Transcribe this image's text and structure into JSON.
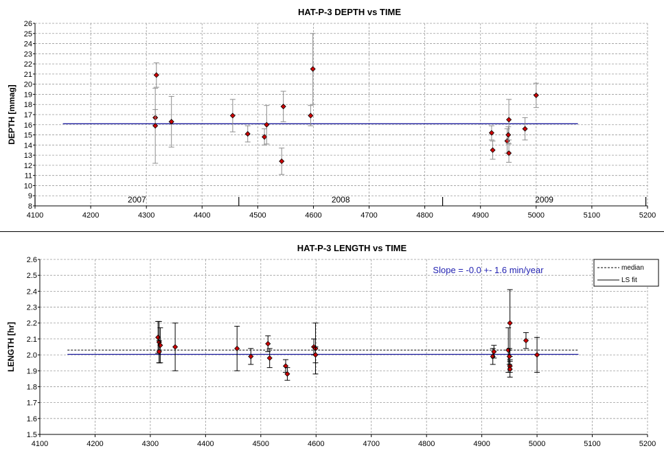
{
  "chart_data": [
    {
      "type": "scatter",
      "title": "HAT-P-3 DEPTH vs TIME",
      "xlabel": "",
      "ylabel": "DEPTH [mmag]",
      "xlim": [
        4100,
        5200
      ],
      "ylim": [
        8,
        26
      ],
      "xticks": [
        4100,
        4200,
        4300,
        4400,
        4500,
        4600,
        4700,
        4800,
        4900,
        5000,
        5100,
        5200
      ],
      "yticks": [
        8,
        9,
        10,
        11,
        12,
        13,
        14,
        15,
        16,
        17,
        18,
        19,
        20,
        21,
        22,
        23,
        24,
        25,
        26
      ],
      "grid": true,
      "year_bands": [
        {
          "label": "2007",
          "start": 4100,
          "end": 4466
        },
        {
          "label": "2008",
          "start": 4466,
          "end": 4832
        },
        {
          "label": "2009",
          "start": 4832,
          "end": 5197
        }
      ],
      "fit_line": {
        "y": 16.1,
        "x_start": 4150,
        "x_end": 5075,
        "color": "#1f1f9f"
      },
      "points": [
        {
          "x": 4316,
          "y": 16.7,
          "err": 0.8
        },
        {
          "x": 4316,
          "y": 15.9,
          "err": 3.7
        },
        {
          "x": 4318,
          "y": 20.9,
          "err": 1.2
        },
        {
          "x": 4345,
          "y": 16.3,
          "err": 2.5
        },
        {
          "x": 4455,
          "y": 16.9,
          "err": 1.6
        },
        {
          "x": 4482,
          "y": 15.1,
          "err": 0.8
        },
        {
          "x": 4512,
          "y": 14.8,
          "err": 0.8
        },
        {
          "x": 4516,
          "y": 16.0,
          "err": 1.9
        },
        {
          "x": 4543,
          "y": 12.4,
          "err": 1.3
        },
        {
          "x": 4546,
          "y": 17.8,
          "err": 1.5
        },
        {
          "x": 4595,
          "y": 16.9,
          "err": 1.0
        },
        {
          "x": 4599,
          "y": 21.5,
          "err": 3.5
        },
        {
          "x": 4920,
          "y": 15.2,
          "err": 0.7
        },
        {
          "x": 4922,
          "y": 13.5,
          "err": 0.9
        },
        {
          "x": 4948,
          "y": 14.4,
          "err": 1.2
        },
        {
          "x": 4951,
          "y": 16.5,
          "err": 2.0
        },
        {
          "x": 4950,
          "y": 15.0,
          "err": 0.8
        },
        {
          "x": 4951,
          "y": 13.2,
          "err": 0.9
        },
        {
          "x": 4980,
          "y": 15.6,
          "err": 1.1
        },
        {
          "x": 5000,
          "y": 18.9,
          "err": 1.2
        }
      ],
      "marker_color": "#cc0000",
      "errorbar_color": "#8c8c8c"
    },
    {
      "type": "scatter",
      "title": "HAT-P-3 LENGTH vs TIME",
      "xlabel": "",
      "ylabel": "LENGTH [hr]",
      "xlim": [
        4100,
        5200
      ],
      "ylim": [
        1.5,
        2.6
      ],
      "xticks": [
        4100,
        4200,
        4300,
        4400,
        4500,
        4600,
        4700,
        4800,
        4900,
        5000,
        5100,
        5200
      ],
      "yticks": [
        "1.5",
        "1.6",
        "1.7",
        "1.8",
        "1.9",
        "2.0",
        "2.1",
        "2.2",
        "2.3",
        "2.4",
        "2.5",
        "2.6"
      ],
      "grid": true,
      "annotation": "Slope = -0.0 +- 1.6 min/year",
      "legend": {
        "position": "top-right",
        "entries": [
          "median",
          "LS fit"
        ]
      },
      "median_line": {
        "y": 2.03,
        "x_start": 4150,
        "x_end": 5075
      },
      "fit_line": {
        "y": 2.003,
        "x_start": 4150,
        "x_end": 5075,
        "color": "#1f1f9f"
      },
      "points": [
        {
          "x": 4314,
          "y": 2.11,
          "err": 0.1
        },
        {
          "x": 4316,
          "y": 2.08,
          "err": 0.13
        },
        {
          "x": 4318,
          "y": 2.06,
          "err": 0.11
        },
        {
          "x": 4316,
          "y": 2.02,
          "err": 0.07
        },
        {
          "x": 4345,
          "y": 2.05,
          "err": 0.15
        },
        {
          "x": 4457,
          "y": 2.04,
          "err": 0.14
        },
        {
          "x": 4482,
          "y": 1.99,
          "err": 0.05
        },
        {
          "x": 4513,
          "y": 2.07,
          "err": 0.05
        },
        {
          "x": 4516,
          "y": 1.98,
          "err": 0.06
        },
        {
          "x": 4545,
          "y": 1.93,
          "err": 0.04
        },
        {
          "x": 4548,
          "y": 1.88,
          "err": 0.04
        },
        {
          "x": 4596,
          "y": 2.05,
          "err": 0.05
        },
        {
          "x": 4599,
          "y": 2.04,
          "err": 0.16
        },
        {
          "x": 4599,
          "y": 2.0,
          "err": 0.05
        },
        {
          "x": 4920,
          "y": 1.99,
          "err": 0.05
        },
        {
          "x": 4922,
          "y": 2.02,
          "err": 0.04
        },
        {
          "x": 4948,
          "y": 2.03,
          "err": 0.14
        },
        {
          "x": 4951,
          "y": 2.2,
          "err": 0.21
        },
        {
          "x": 4950,
          "y": 1.99,
          "err": 0.05
        },
        {
          "x": 4951,
          "y": 1.93,
          "err": 0.04
        },
        {
          "x": 4951,
          "y": 1.91,
          "err": 0.05
        },
        {
          "x": 4980,
          "y": 2.09,
          "err": 0.05
        },
        {
          "x": 5000,
          "y": 2.0,
          "err": 0.11
        }
      ],
      "marker_color": "#cc0000",
      "errorbar_color": "#000000"
    }
  ]
}
